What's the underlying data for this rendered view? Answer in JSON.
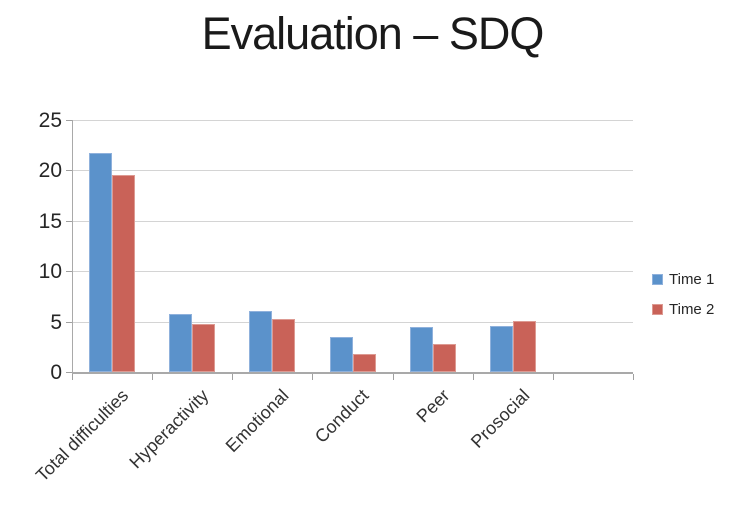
{
  "chart_data": {
    "type": "bar",
    "title": "Evaluation – SDQ",
    "categories": [
      "Total difficulties",
      "Hyperactivity",
      "Emotional",
      "Conduct",
      "Peer",
      "Prosocial"
    ],
    "series": [
      {
        "name": "Time 1",
        "color": "#5b92cb",
        "border_color": "#8fb1dc",
        "values": [
          21.7,
          5.8,
          6.1,
          3.5,
          4.5,
          4.6
        ]
      },
      {
        "name": "Time 2",
        "color": "#c96258",
        "border_color": "#dd9a92",
        "values": [
          19.5,
          4.8,
          5.3,
          1.8,
          2.8,
          5.1
        ]
      }
    ],
    "xlabel": "",
    "ylabel": "",
    "ylim": [
      0,
      25
    ],
    "yticks": [
      0,
      5,
      10,
      15,
      20,
      25
    ],
    "empty_trailing_category_slots": 1,
    "grid": true,
    "legend_position": "right",
    "gridline_color": "#d4d4d4",
    "axis_color": "#a9a9a9",
    "text_color": "#262626"
  }
}
